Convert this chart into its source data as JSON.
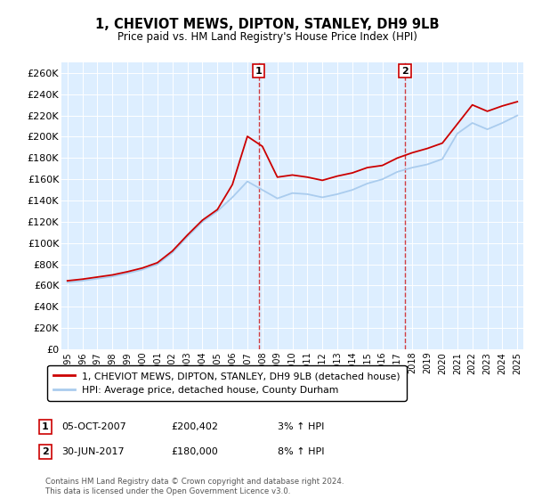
{
  "title": "1, CHEVIOT MEWS, DIPTON, STANLEY, DH9 9LB",
  "subtitle": "Price paid vs. HM Land Registry's House Price Index (HPI)",
  "ylabel_ticks": [
    "£0",
    "£20K",
    "£40K",
    "£60K",
    "£80K",
    "£100K",
    "£120K",
    "£140K",
    "£160K",
    "£180K",
    "£200K",
    "£220K",
    "£240K",
    "£260K"
  ],
  "ytick_values": [
    0,
    20000,
    40000,
    60000,
    80000,
    100000,
    120000,
    140000,
    160000,
    180000,
    200000,
    220000,
    240000,
    260000
  ],
  "ylim": [
    0,
    270000
  ],
  "hpi_color": "#aaccee",
  "price_color": "#cc0000",
  "bg_color": "#ddeeff",
  "marker1_x": 2007.76,
  "marker1_label": "1",
  "marker2_x": 2017.5,
  "marker2_label": "2",
  "legend_line1": "1, CHEVIOT MEWS, DIPTON, STANLEY, DH9 9LB (detached house)",
  "legend_line2": "HPI: Average price, detached house, County Durham",
  "footer": "Contains HM Land Registry data © Crown copyright and database right 2024.\nThis data is licensed under the Open Government Licence v3.0.",
  "xticks": [
    1995,
    1996,
    1997,
    1998,
    1999,
    2000,
    2001,
    2002,
    2003,
    2004,
    2005,
    2006,
    2007,
    2008,
    2009,
    2010,
    2011,
    2012,
    2013,
    2014,
    2015,
    2016,
    2017,
    2018,
    2019,
    2020,
    2021,
    2022,
    2023,
    2024,
    2025
  ],
  "years": [
    1995,
    1996,
    1997,
    1998,
    1999,
    2000,
    2001,
    2002,
    2003,
    2004,
    2005,
    2006,
    2007,
    2008,
    2009,
    2010,
    2011,
    2012,
    2013,
    2014,
    2015,
    2016,
    2017,
    2018,
    2019,
    2020,
    2021,
    2022,
    2023,
    2024,
    2025
  ],
  "hpi_values": [
    63000,
    64500,
    66500,
    68500,
    71500,
    75000,
    80000,
    91000,
    106000,
    120000,
    130000,
    143000,
    158000,
    150000,
    142000,
    147000,
    146000,
    143000,
    146000,
    150000,
    156000,
    160000,
    167000,
    171000,
    174000,
    179000,
    203000,
    213000,
    207000,
    213000,
    220000
  ],
  "price_values": [
    64500,
    66000,
    68000,
    70000,
    73000,
    76500,
    81500,
    92500,
    107500,
    121500,
    131500,
    155000,
    200402,
    191000,
    162000,
    164000,
    162000,
    159000,
    163000,
    166000,
    171000,
    173000,
    180000,
    185000,
    189000,
    194000,
    212000,
    230000,
    224000,
    229000,
    233000
  ],
  "ann1_date": "05-OCT-2007",
  "ann1_price": "£200,402",
  "ann1_hpi": "3% ↑ HPI",
  "ann2_date": "30-JUN-2017",
  "ann2_price": "£180,000",
  "ann2_hpi": "8% ↑ HPI"
}
